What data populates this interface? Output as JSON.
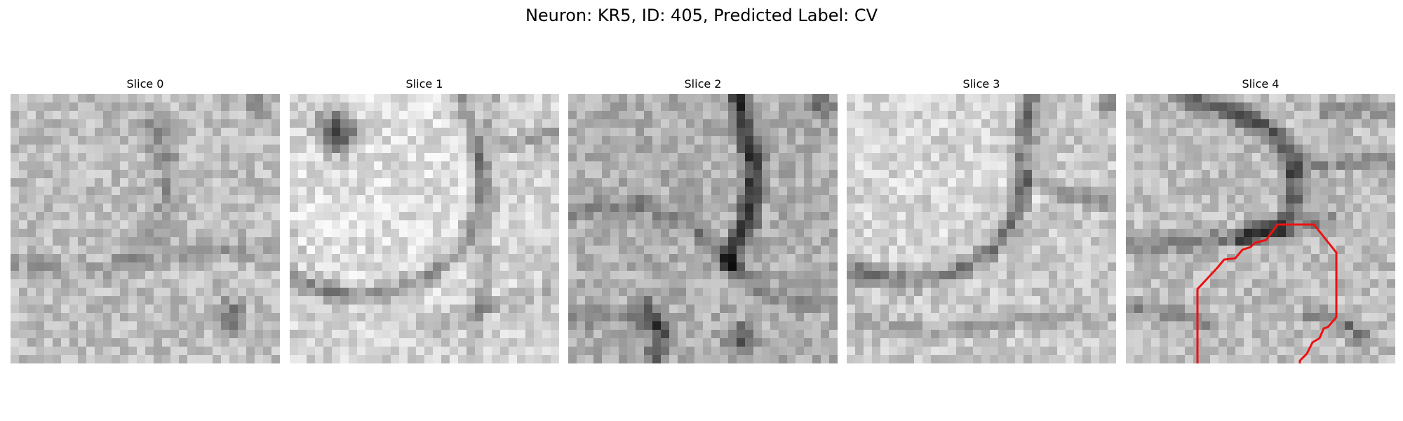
{
  "figure": {
    "title": "Neuron: KR5, ID: 405, Predicted Label: CV"
  },
  "panels": [
    {
      "title": "Slice 0"
    },
    {
      "title": "Slice 1"
    },
    {
      "title": "Slice 2"
    },
    {
      "title": "Slice 3"
    },
    {
      "title": "Slice 4"
    }
  ],
  "colors": {
    "contour": "#ee1111",
    "background": "#ffffff"
  }
}
